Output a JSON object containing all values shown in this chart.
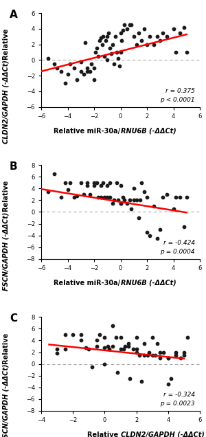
{
  "panels": [
    {
      "label": "A",
      "xlabel_prefix": "Relative miR-30a/",
      "xlabel_italic": "RNU6B",
      "xlabel_suffix": " (-ΔΔCt)",
      "ylabel_prefix": "Relative ",
      "ylabel_italic": "CLDN2/GAPDH",
      "ylabel_suffix": " (-ΔΔCt)",
      "xlim": [
        -6,
        6
      ],
      "ylim": [
        -6,
        6
      ],
      "xticks": [
        -6,
        -4,
        -2,
        0,
        2,
        4,
        6
      ],
      "yticks": [
        -6,
        -4,
        -2,
        0,
        2,
        4,
        6
      ],
      "r_text": "r = 0.375",
      "p_text": "p < 0.0001",
      "line_x": [
        -6,
        5
      ],
      "line_y": [
        -1.45,
        3.28
      ],
      "scatter_x": [
        -5.5,
        -5.0,
        -4.8,
        -4.5,
        -4.2,
        -4.0,
        -3.8,
        -3.5,
        -3.3,
        -3.0,
        -3.0,
        -2.8,
        -2.7,
        -2.5,
        -2.5,
        -2.3,
        -2.2,
        -2.0,
        -2.0,
        -1.9,
        -1.8,
        -1.7,
        -1.6,
        -1.5,
        -1.4,
        -1.3,
        -1.2,
        -1.1,
        -1.0,
        -1.0,
        -0.9,
        -0.8,
        -0.7,
        -0.6,
        -0.5,
        -0.4,
        -0.3,
        -0.2,
        -0.1,
        0.0,
        0.0,
        0.1,
        0.2,
        0.3,
        0.5,
        0.7,
        0.8,
        1.0,
        1.2,
        1.4,
        1.6,
        1.8,
        2.0,
        2.2,
        2.5,
        2.8,
        3.0,
        3.2,
        3.5,
        4.0,
        4.2,
        4.5,
        4.8,
        5.0
      ],
      "scatter_y": [
        0.2,
        -0.5,
        -1.0,
        -1.5,
        -3.0,
        -1.8,
        -0.5,
        -1.0,
        -2.5,
        -1.5,
        -0.2,
        -1.8,
        2.2,
        -1.0,
        -1.5,
        -1.5,
        -0.5,
        -2.5,
        -1.0,
        1.0,
        1.5,
        0.5,
        2.5,
        2.8,
        2.0,
        3.0,
        0.5,
        2.5,
        3.0,
        0.0,
        3.5,
        1.5,
        0.8,
        2.0,
        -0.5,
        3.0,
        1.0,
        0.2,
        -0.8,
        1.0,
        3.5,
        2.5,
        3.8,
        4.5,
        4.0,
        4.5,
        4.5,
        3.0,
        2.0,
        3.5,
        2.5,
        4.0,
        2.0,
        3.0,
        2.0,
        3.0,
        2.5,
        3.5,
        3.0,
        4.0,
        1.0,
        3.5,
        4.2,
        1.0
      ]
    },
    {
      "label": "B",
      "xlabel_prefix": "Relative miR-30a/",
      "xlabel_italic": "RNU6B",
      "xlabel_suffix": " (-ΔΔCt)",
      "ylabel_prefix": "Relative ",
      "ylabel_italic": "FSCN/GAPDH",
      "ylabel_suffix": " (-ΔΔCt)",
      "xlim": [
        -6,
        6
      ],
      "ylim": [
        -8,
        8
      ],
      "xticks": [
        -6,
        -4,
        -2,
        0,
        2,
        4,
        6
      ],
      "yticks": [
        -8,
        -6,
        -4,
        -2,
        0,
        2,
        4,
        6,
        8
      ],
      "r_text": "r = -0.424",
      "p_text": "p = 0.0004",
      "line_x": [
        -6,
        5
      ],
      "line_y": [
        3.9,
        -0.1
      ],
      "scatter_x": [
        -5.5,
        -5.0,
        -4.5,
        -4.2,
        -4.0,
        -3.8,
        -3.5,
        -3.3,
        -3.0,
        -2.8,
        -2.5,
        -2.5,
        -2.3,
        -2.0,
        -2.0,
        -1.8,
        -1.7,
        -1.5,
        -1.5,
        -1.3,
        -1.2,
        -1.0,
        -1.0,
        -0.8,
        -0.8,
        -0.6,
        -0.5,
        -0.3,
        -0.2,
        0.0,
        0.0,
        0.0,
        0.2,
        0.3,
        0.5,
        0.7,
        0.8,
        1.0,
        1.0,
        1.2,
        1.4,
        1.5,
        1.6,
        1.8,
        2.0,
        2.0,
        2.2,
        2.5,
        2.8,
        3.0,
        3.2,
        3.5,
        4.0,
        4.2,
        4.5,
        4.8,
        5.0
      ],
      "scatter_y": [
        3.5,
        6.5,
        2.5,
        5.0,
        3.8,
        5.0,
        2.5,
        2.8,
        5.0,
        3.0,
        5.0,
        4.5,
        3.0,
        5.0,
        4.5,
        5.0,
        2.5,
        2.5,
        4.5,
        5.0,
        2.5,
        2.5,
        4.5,
        5.0,
        2.5,
        1.5,
        2.0,
        5.0,
        2.0,
        1.5,
        4.5,
        1.5,
        2.5,
        2.0,
        1.5,
        2.0,
        0.5,
        2.0,
        4.0,
        2.0,
        -1.0,
        2.0,
        5.0,
        3.5,
        2.5,
        -3.5,
        -4.0,
        1.0,
        -4.5,
        -3.0,
        2.5,
        3.0,
        0.5,
        2.5,
        2.5,
        -2.5,
        2.5
      ]
    },
    {
      "label": "C",
      "xlabel_prefix": "Relative ",
      "xlabel_italic": "CLDN2/GAPDH",
      "xlabel_suffix": " (-ΔΔCt)",
      "ylabel_prefix": "Relative ",
      "ylabel_italic": "FSCN/GAPDH",
      "ylabel_suffix": " (-ΔΔCt)",
      "xlim": [
        -4,
        6
      ],
      "ylim": [
        -8,
        8
      ],
      "xticks": [
        -4,
        -2,
        0,
        2,
        4,
        6
      ],
      "yticks": [
        -8,
        -6,
        -4,
        -2,
        0,
        2,
        4,
        6,
        8
      ],
      "r_text": "r = -0.324",
      "p_text": "p = 0.0023",
      "line_x": [
        -3.5,
        5
      ],
      "line_y": [
        3.3,
        0.9
      ],
      "scatter_x": [
        -3.0,
        -3.0,
        -2.5,
        -2.5,
        -2.0,
        -1.5,
        -1.5,
        -1.2,
        -1.0,
        -0.8,
        -0.5,
        -0.5,
        -0.3,
        0.0,
        0.0,
        0.0,
        0.2,
        0.3,
        0.5,
        0.5,
        0.7,
        0.8,
        1.0,
        1.0,
        1.2,
        1.3,
        1.5,
        1.5,
        1.6,
        1.8,
        2.0,
        2.0,
        2.0,
        2.2,
        2.3,
        2.5,
        2.5,
        2.7,
        2.8,
        3.0,
        3.0,
        3.2,
        3.3,
        3.5,
        3.5,
        3.7,
        4.0,
        4.0,
        4.0,
        4.2,
        4.5,
        4.5,
        4.8,
        5.0,
        5.0,
        5.2
      ],
      "scatter_y": [
        2.5,
        1.8,
        2.5,
        5.0,
        5.0,
        4.0,
        5.0,
        2.8,
        2.5,
        -0.5,
        4.0,
        3.0,
        5.0,
        4.5,
        2.8,
        0.0,
        3.0,
        2.5,
        3.0,
        6.5,
        4.5,
        -1.5,
        2.5,
        4.5,
        2.5,
        3.0,
        3.0,
        3.5,
        -2.5,
        2.5,
        4.5,
        2.5,
        2.0,
        1.5,
        -3.0,
        1.5,
        3.5,
        1.5,
        2.0,
        4.5,
        1.5,
        1.5,
        3.5,
        2.0,
        1.0,
        2.0,
        1.0,
        -3.5,
        1.0,
        -2.5,
        2.0,
        1.5,
        1.0,
        2.0,
        1.5,
        4.5
      ]
    }
  ],
  "dot_color": "#1a1a1a",
  "line_color": "#ff0000",
  "hline_color": "#aaaaaa",
  "background_color": "#ffffff",
  "dot_size": 10,
  "line_width": 1.8
}
